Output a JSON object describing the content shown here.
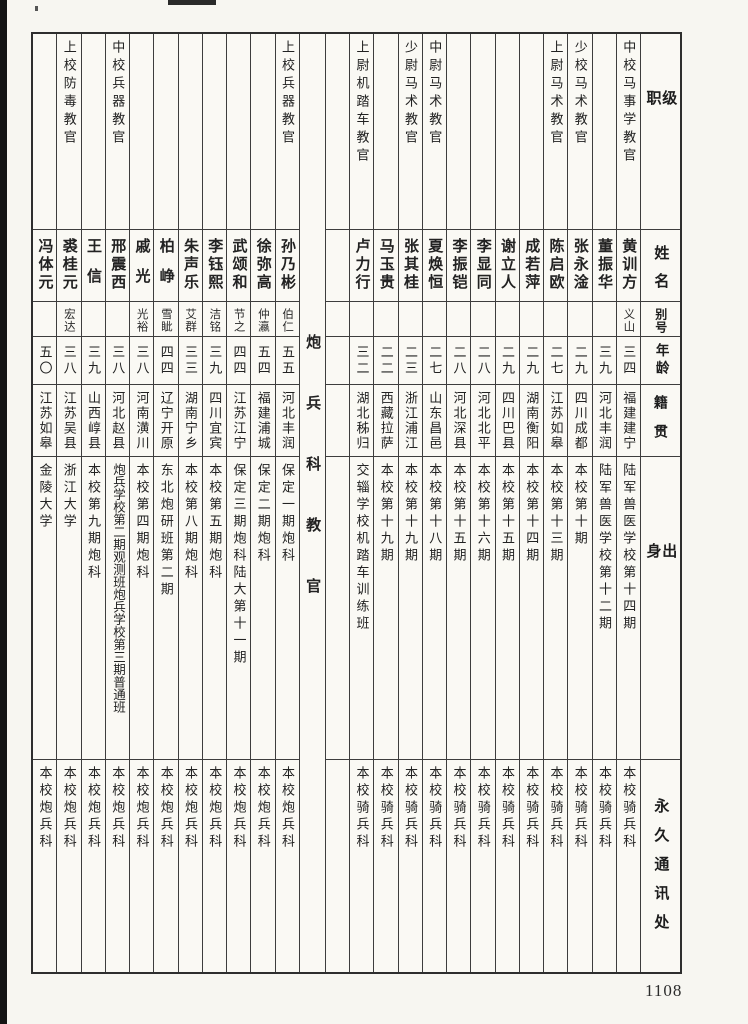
{
  "page": {
    "number": "1108"
  },
  "table": {
    "section_title": "炮兵科教官",
    "header": {
      "rank": "级职",
      "name": "姓名",
      "alias": "别号",
      "age": "年龄",
      "native": "籍贯",
      "origin": "出身",
      "address": "永久通讯处"
    },
    "columns_right_to_left": [
      {
        "type": "header"
      },
      {
        "type": "person",
        "rank": "中校马事学教官",
        "name": "黄训方",
        "alias": "义山",
        "age": "三四",
        "native": "福建建宁",
        "origin": "陆军兽医学校第十四期",
        "address": "本校骑兵科"
      },
      {
        "type": "person",
        "rank": "",
        "name": "董振华",
        "alias": "",
        "age": "三九",
        "native": "河北丰润",
        "origin": "陆军兽医学校第十二期",
        "address": "本校骑兵科"
      },
      {
        "type": "person",
        "rank": "少校马术教官",
        "name": "张永淦",
        "alias": "",
        "age": "二九",
        "native": "四川成都",
        "origin": "本校第十期",
        "address": "本校骑兵科"
      },
      {
        "type": "person",
        "rank": "上尉马术教官",
        "name": "陈启欧",
        "alias": "",
        "age": "二七",
        "native": "江苏如皋",
        "origin": "本校第十三期",
        "address": "本校骑兵科"
      },
      {
        "type": "person",
        "rank": "",
        "name": "成若萍",
        "alias": "",
        "age": "二九",
        "native": "湖南衡阳",
        "origin": "本校第十四期",
        "address": "本校骑兵科"
      },
      {
        "type": "person",
        "rank": "",
        "name": "谢立人",
        "alias": "",
        "age": "二九",
        "native": "四川巴县",
        "origin": "本校第十五期",
        "address": "本校骑兵科"
      },
      {
        "type": "person",
        "rank": "",
        "name": "李显同",
        "alias": "",
        "age": "二八",
        "native": "河北北平",
        "origin": "本校第十六期",
        "address": "本校骑兵科"
      },
      {
        "type": "person",
        "rank": "",
        "name": "李振铠",
        "alias": "",
        "age": "二八",
        "native": "河北深县",
        "origin": "本校第十五期",
        "address": "本校骑兵科"
      },
      {
        "type": "person",
        "rank": "中尉马术教官",
        "name": "夏焕恒",
        "alias": "",
        "age": "二七",
        "native": "山东昌邑",
        "origin": "本校第十八期",
        "address": "本校骑兵科"
      },
      {
        "type": "person",
        "rank": "少尉马术教官",
        "name": "张其桂",
        "alias": "",
        "age": "二三",
        "native": "浙江浦江",
        "origin": "本校第十九期",
        "address": "本校骑兵科"
      },
      {
        "type": "person",
        "rank": "",
        "name": "马玉贵",
        "alias": "",
        "age": "二二",
        "native": "西藏拉萨",
        "origin": "本校第十九期",
        "address": "本校骑兵科"
      },
      {
        "type": "person",
        "rank": "上尉机踏车教官",
        "name": "卢力行",
        "alias": "",
        "age": "三二",
        "native": "湖北秭归",
        "origin": "交辎学校机踏车训练班",
        "address": "本校骑兵科"
      },
      {
        "type": "empty"
      },
      {
        "type": "section"
      },
      {
        "type": "person",
        "rank": "上校兵器教官",
        "name": "孙乃彬",
        "alias": "伯仁",
        "age": "五五",
        "native": "河北丰润",
        "origin": "保定一期炮科",
        "address": "本校炮兵科"
      },
      {
        "type": "person",
        "rank": "",
        "name": "徐弥高",
        "alias": "仲瀛",
        "age": "五四",
        "native": "福建浦城",
        "origin": "保定二期炮科",
        "address": "本校炮兵科"
      },
      {
        "type": "person",
        "rank": "",
        "name": "武颂和",
        "alias": "节之",
        "age": "四四",
        "native": "江苏江宁",
        "origin": "保定三期炮科陆大第十一期",
        "address": "本校炮兵科"
      },
      {
        "type": "person",
        "rank": "",
        "name": "李钰熙",
        "alias": "洁铭",
        "age": "三九",
        "native": "四川宜宾",
        "origin": "本校第五期炮科",
        "address": "本校炮兵科"
      },
      {
        "type": "person",
        "rank": "",
        "name": "朱声乐",
        "alias": "艾群",
        "age": "三三",
        "native": "湖南宁乡",
        "origin": "本校第八期炮科",
        "address": "本校炮兵科"
      },
      {
        "type": "person",
        "rank": "",
        "name": "柏峥",
        "alias": "雪眦",
        "age": "四四",
        "native": "辽宁开原",
        "origin": "东北炮研班第二期",
        "address": "本校炮兵科"
      },
      {
        "type": "person",
        "rank": "",
        "name": "戚光",
        "alias": "光裕",
        "age": "三八",
        "native": "河南潢川",
        "origin": "本校第四期炮科",
        "address": "本校炮兵科"
      },
      {
        "type": "person",
        "rank": "中校兵器教官",
        "name": "邢震西",
        "alias": "",
        "age": "三八",
        "native": "河北赵县",
        "origin": "炮兵学校第二期观测班炮兵学校第三期普通班",
        "address": "本校炮兵科"
      },
      {
        "type": "person",
        "rank": "",
        "name": "王信",
        "alias": "",
        "age": "三九",
        "native": "山西崞县",
        "origin": "本校第九期炮科",
        "address": "本校炮兵科"
      },
      {
        "type": "person",
        "rank": "上校防毒教官",
        "name": "裘桂元",
        "alias": "宏达",
        "age": "三八",
        "native": "江苏吴县",
        "origin": "浙江大学",
        "address": "本校炮兵科"
      },
      {
        "type": "person",
        "rank": "",
        "name": "冯体元",
        "alias": "",
        "age": "五〇",
        "native": "江苏如皋",
        "origin": "金陵大学",
        "address": "本校炮兵科"
      }
    ]
  }
}
